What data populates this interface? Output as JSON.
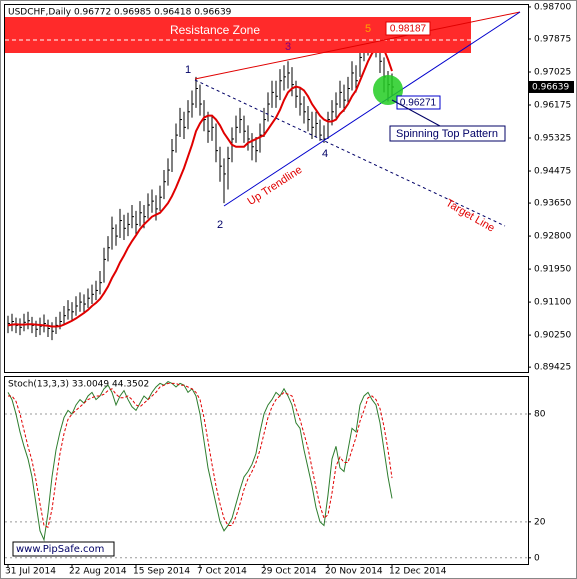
{
  "chart_data": [
    {
      "type": "ohlc",
      "title": "USDCHF,Daily  0.96772 0.96985 0.96418 0.96639",
      "categories": [
        "31 Jul 2014",
        null,
        null,
        null,
        null,
        null,
        null,
        null,
        null,
        null,
        null,
        null,
        null,
        null,
        null,
        null,
        "22 Aug 2014",
        null,
        null,
        null,
        null,
        null,
        null,
        null,
        null,
        null,
        null,
        null,
        null,
        null,
        null,
        null,
        "15 Sep 2014",
        null,
        null,
        null,
        null,
        null,
        null,
        null,
        null,
        null,
        null,
        null,
        null,
        null,
        null,
        null,
        "7 Oct 2014",
        null,
        null,
        null,
        null,
        null,
        null,
        null,
        null,
        null,
        null,
        null,
        null,
        null,
        null,
        null,
        "29 Oct 2014",
        null,
        null,
        null,
        null,
        null,
        null,
        null,
        null,
        null,
        null,
        null,
        null,
        null,
        null,
        null,
        "20 Nov 2014",
        null,
        null,
        null,
        null,
        null,
        null,
        null,
        null,
        null,
        null,
        null,
        null,
        null,
        null,
        null,
        "12 Dec 2014"
      ],
      "high": [
        0.9075,
        0.908,
        0.907,
        0.9068,
        0.908,
        0.9085,
        0.9072,
        0.9062,
        0.907,
        0.9078,
        0.9065,
        0.9058,
        0.9072,
        0.9085,
        0.91,
        0.9115,
        0.911,
        0.9125,
        0.9135,
        0.913,
        0.9145,
        0.9155,
        0.9165,
        0.919,
        0.925,
        0.928,
        0.933,
        0.931,
        0.935,
        0.9335,
        0.934,
        0.936,
        0.9345,
        0.937,
        0.936,
        0.939,
        0.94,
        0.9385,
        0.941,
        0.945,
        0.948,
        0.953,
        0.957,
        0.961,
        0.96,
        0.963,
        0.9655,
        0.969,
        0.967,
        0.963,
        0.96,
        0.959,
        0.957,
        0.951,
        0.948,
        0.951,
        0.956,
        0.959,
        0.961,
        0.959,
        0.9565,
        0.9545,
        0.9535,
        0.957,
        0.961,
        0.965,
        0.968,
        0.968,
        0.971,
        0.972,
        0.973,
        0.9715,
        0.968,
        0.966,
        0.964,
        0.9615,
        0.96,
        0.96,
        0.958,
        0.9565,
        0.96,
        0.963,
        0.965,
        0.968,
        0.967,
        0.969,
        0.973,
        0.972,
        0.977,
        0.98,
        0.98187,
        0.9815,
        0.9805,
        0.978,
        0.974,
        0.9705,
        0.96985
      ],
      "low": [
        0.903,
        0.9035,
        0.903,
        0.9025,
        0.9035,
        0.904,
        0.903,
        0.902,
        0.9025,
        0.9032,
        0.902,
        0.9012,
        0.9028,
        0.904,
        0.905,
        0.9065,
        0.906,
        0.9075,
        0.9085,
        0.908,
        0.9095,
        0.9105,
        0.9115,
        0.913,
        0.916,
        0.9215,
        0.9245,
        0.9255,
        0.9275,
        0.927,
        0.928,
        0.93,
        0.9285,
        0.9305,
        0.93,
        0.9325,
        0.934,
        0.932,
        0.9345,
        0.9375,
        0.941,
        0.9445,
        0.9495,
        0.9535,
        0.953,
        0.9555,
        0.9585,
        0.961,
        0.959,
        0.955,
        0.952,
        0.9525,
        0.947,
        0.942,
        0.9365,
        0.94,
        0.947,
        0.952,
        0.9545,
        0.952,
        0.95,
        0.9475,
        0.947,
        0.9495,
        0.9535,
        0.9575,
        0.961,
        0.961,
        0.963,
        0.9655,
        0.966,
        0.964,
        0.961,
        0.959,
        0.957,
        0.955,
        0.953,
        0.9535,
        0.9525,
        0.952,
        0.953,
        0.9565,
        0.9585,
        0.961,
        0.96,
        0.962,
        0.9655,
        0.965,
        0.969,
        0.973,
        0.9745,
        0.976,
        0.974,
        0.97,
        0.965,
        0.9627,
        0.96418
      ],
      "close": [
        0.9055,
        0.906,
        0.905,
        0.9045,
        0.9058,
        0.9062,
        0.905,
        0.904,
        0.9048,
        0.9055,
        0.9042,
        0.9035,
        0.905,
        0.906,
        0.9075,
        0.909,
        0.9085,
        0.91,
        0.911,
        0.9105,
        0.912,
        0.913,
        0.914,
        0.916,
        0.922,
        0.925,
        0.93,
        0.928,
        0.932,
        0.93,
        0.931,
        0.933,
        0.931,
        0.934,
        0.933,
        0.936,
        0.937,
        0.935,
        0.938,
        0.942,
        0.945,
        0.95,
        0.954,
        0.958,
        0.956,
        0.96,
        0.962,
        0.966,
        0.962,
        0.958,
        0.955,
        0.956,
        0.95,
        0.946,
        0.944,
        0.948,
        0.953,
        0.956,
        0.958,
        0.955,
        0.953,
        0.951,
        0.95,
        0.954,
        0.958,
        0.962,
        0.965,
        0.964,
        0.968,
        0.969,
        0.97,
        0.967,
        0.964,
        0.962,
        0.96,
        0.958,
        0.956,
        0.957,
        0.954,
        0.953,
        0.958,
        0.96,
        0.962,
        0.965,
        0.963,
        0.966,
        0.97,
        0.968,
        0.974,
        0.977,
        0.979,
        0.98,
        0.977,
        0.973,
        0.969,
        0.967,
        0.96639
      ],
      "bar_color": "#000000",
      "ma": {
        "color": "#e00000",
        "values": [
          0.905,
          0.9052,
          0.9053,
          0.9052,
          0.9052,
          0.9053,
          0.9053,
          0.9052,
          0.9051,
          0.905,
          0.9049,
          0.9047,
          0.9047,
          0.9048,
          0.9052,
          0.9057,
          0.9062,
          0.9068,
          0.9075,
          0.9082,
          0.909,
          0.91,
          0.9108,
          0.9118,
          0.9133,
          0.915,
          0.9172,
          0.919,
          0.9212,
          0.923,
          0.925,
          0.9267,
          0.9282,
          0.9298,
          0.931,
          0.932,
          0.933,
          0.9335,
          0.934,
          0.9352,
          0.9365,
          0.9383,
          0.9405,
          0.943,
          0.9455,
          0.9485,
          0.9515,
          0.955,
          0.957,
          0.9585,
          0.959,
          0.959,
          0.958,
          0.9565,
          0.9545,
          0.953,
          0.9515,
          0.951,
          0.951,
          0.951,
          0.952,
          0.9525,
          0.953,
          0.9535,
          0.954,
          0.9555,
          0.957,
          0.9585,
          0.9605,
          0.963,
          0.965,
          0.966,
          0.9665,
          0.9662,
          0.9655,
          0.964,
          0.962,
          0.9605,
          0.959,
          0.958,
          0.9575,
          0.9575,
          0.958,
          0.9595,
          0.9605,
          0.962,
          0.964,
          0.9655,
          0.968,
          0.9705,
          0.973,
          0.975,
          0.9765,
          0.977,
          0.976,
          0.9735,
          0.9705
        ]
      },
      "ylim": [
        0.893,
        0.9875
      ],
      "yticks": [
        {
          "value": 0.987,
          "label": "0.98700"
        },
        {
          "value": 0.97875,
          "label": "0.97875"
        },
        {
          "value": 0.97025,
          "label": "0.97025"
        },
        {
          "value": 0.96175,
          "label": "0.96175"
        },
        {
          "value": 0.95325,
          "label": "0.95325"
        },
        {
          "value": 0.94475,
          "label": "0.94475"
        },
        {
          "value": 0.9365,
          "label": "0.93650"
        },
        {
          "value": 0.928,
          "label": "0.92800"
        },
        {
          "value": 0.9195,
          "label": "0.91950"
        },
        {
          "value": 0.911,
          "label": "0.91100"
        },
        {
          "value": 0.9025,
          "label": "0.90250"
        },
        {
          "value": 0.89425,
          "label": "0.89425"
        }
      ],
      "last_price": {
        "value": 0.96639,
        "label": "0.96639"
      },
      "annotations": {
        "zone": "Resistance Zone",
        "p1": "1",
        "p2": "2",
        "p3": "3",
        "p4": "4",
        "p5": "5",
        "high_label": "0.98187",
        "low_label": "0.96271",
        "trendline": "Up Trendline",
        "target": "Target Line",
        "pattern": "Spinning Top Pattern"
      }
    },
    {
      "type": "stochastic",
      "title": "Stoch(13,3,3) 33.0049 44.3502",
      "series": [
        {
          "color": "#2e7d2e",
          "dash": false,
          "values": [
            92,
            88,
            80,
            70,
            62,
            55,
            45,
            30,
            15,
            10,
            25,
            45,
            60,
            70,
            78,
            82,
            80,
            85,
            88,
            86,
            90,
            92,
            88,
            90,
            94,
            96,
            92,
            85,
            90,
            93,
            88,
            84,
            82,
            86,
            90,
            88,
            92,
            95,
            97,
            96,
            98,
            97,
            95,
            97,
            96,
            92,
            94,
            90,
            80,
            65,
            50,
            40,
            30,
            20,
            15,
            18,
            22,
            30,
            38,
            45,
            48,
            52,
            58,
            70,
            80,
            85,
            88,
            92,
            90,
            94,
            90,
            85,
            75,
            72,
            60,
            50,
            40,
            28,
            20,
            18,
            35,
            55,
            62,
            50,
            48,
            60,
            72,
            70,
            85,
            90,
            92,
            88,
            85,
            75,
            60,
            45,
            33.0049
          ]
        },
        {
          "color": "#e00000",
          "dash": true,
          "values": [
            90,
            90,
            87,
            80,
            71,
            62,
            54,
            43,
            30,
            18,
            17,
            27,
            43,
            58,
            69,
            77,
            80,
            82,
            84,
            86,
            88,
            89,
            90,
            90,
            91,
            93,
            94,
            91,
            89,
            89,
            90,
            88,
            85,
            84,
            86,
            88,
            90,
            92,
            95,
            96,
            97,
            97,
            97,
            96,
            96,
            95,
            94,
            92,
            88,
            78,
            65,
            52,
            40,
            30,
            22,
            18,
            18,
            23,
            30,
            38,
            44,
            48,
            53,
            60,
            69,
            78,
            84,
            88,
            90,
            92,
            91,
            90,
            83,
            77,
            69,
            61,
            50,
            39,
            29,
            22,
            24,
            36,
            51,
            56,
            53,
            53,
            60,
            67,
            76,
            82,
            89,
            90,
            88,
            83,
            73,
            60,
            44.3502
          ]
        }
      ],
      "ylim": [
        -4,
        100
      ],
      "yticks": [
        80,
        20,
        0
      ],
      "grid": true
    }
  ],
  "watermark": "www.PipSafe.com"
}
